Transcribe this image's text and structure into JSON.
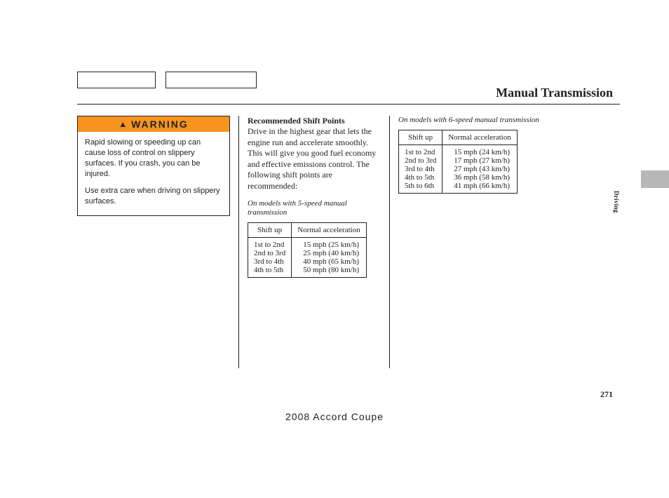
{
  "title": "Manual Transmission",
  "side_label": "Driving",
  "page_number": "271",
  "footer": "2008  Accord  Coupe",
  "warning": {
    "label": "WARNING",
    "p1": "Rapid slowing or speeding up can cause loss of control on slippery surfaces. If you crash, you can be injured.",
    "p2": "Use extra care when driving on slippery surfaces."
  },
  "col2": {
    "heading": "Recommended Shift Points",
    "body": "Drive in the highest gear that lets the engine run and accelerate smoothly. This will give you good fuel economy and effective emissions control. The following shift points are recommended:",
    "note": "On models with 5-speed manual transmission",
    "th1": "Shift up",
    "th2": "Normal acceleration",
    "rows": [
      {
        "s": "1st to 2nd",
        "v": "15 mph (25 km/h)"
      },
      {
        "s": "2nd to 3rd",
        "v": "25 mph (40 km/h)"
      },
      {
        "s": "3rd to 4th",
        "v": "40 mph (65 km/h)"
      },
      {
        "s": "4th to 5th",
        "v": "50 mph (80 km/h)"
      }
    ]
  },
  "col3": {
    "note": "On models with 6-speed manual transmission",
    "th1": "Shift up",
    "th2": "Normal acceleration",
    "rows": [
      {
        "s": "1st to 2nd",
        "v": "15 mph (24 km/h)"
      },
      {
        "s": "2nd to 3rd",
        "v": "17 mph (27 km/h)"
      },
      {
        "s": "3rd to 4th",
        "v": "27 mph (43 km/h)"
      },
      {
        "s": "4th to 5th",
        "v": "36 mph (58 km/h)"
      },
      {
        "s": "5th to 6th",
        "v": "41 mph (66 km/h)"
      }
    ]
  }
}
